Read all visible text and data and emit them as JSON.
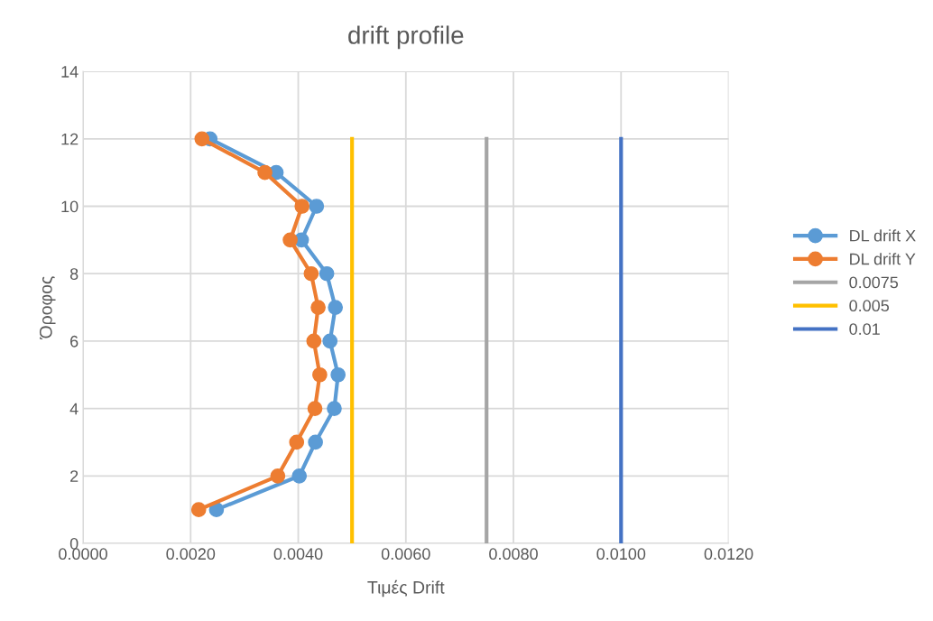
{
  "chart_data": {
    "type": "line",
    "title": "drift profile",
    "xlabel": "Τιμές Drift",
    "ylabel": "Όροφος",
    "xlim": [
      0,
      0.012
    ],
    "xticks": [
      {
        "value": 0,
        "label": "0.0000"
      },
      {
        "value": 0.002,
        "label": "0.0020"
      },
      {
        "value": 0.004,
        "label": "0.0040"
      },
      {
        "value": 0.006,
        "label": "0.0060"
      },
      {
        "value": 0.008,
        "label": "0.0080"
      },
      {
        "value": 0.01,
        "label": "0.0100"
      },
      {
        "value": 0.012,
        "label": "0.0120"
      }
    ],
    "ylim": [
      0,
      14
    ],
    "yticks": [
      0,
      2,
      4,
      6,
      8,
      10,
      12,
      14
    ],
    "grid": true,
    "legend": "right",
    "line_style": "solid",
    "series": [
      {
        "name": "DL drift X",
        "color": "#5b9bd5",
        "marker": "circle",
        "x": [
          0.00236,
          0.00359,
          0.00434,
          0.00406,
          0.00453,
          0.00469,
          0.00459,
          0.00474,
          0.00467,
          0.00432,
          0.00402,
          0.00248
        ],
        "values": [
          12,
          11,
          10,
          9,
          8,
          7,
          6,
          5,
          4,
          3,
          2,
          1
        ]
      },
      {
        "name": "DL drift Y",
        "color": "#ed7d31",
        "marker": "circle",
        "x": [
          0.00221,
          0.00338,
          0.00407,
          0.00385,
          0.00424,
          0.00437,
          0.00429,
          0.0044,
          0.00431,
          0.00397,
          0.00362,
          0.00215
        ],
        "values": [
          12,
          11,
          10,
          9,
          8,
          7,
          6,
          5,
          4,
          3,
          2,
          1
        ]
      },
      {
        "name": "0.0075",
        "color": "#a5a5a5",
        "marker": "none",
        "x": [
          0.0075,
          0.0075
        ],
        "values": [
          0,
          12
        ]
      },
      {
        "name": "0.005",
        "color": "#ffc000",
        "marker": "none",
        "x": [
          0.005,
          0.005
        ],
        "values": [
          0,
          12
        ]
      },
      {
        "name": "0.01",
        "color": "#4472c4",
        "marker": "none",
        "x": [
          0.01,
          0.01
        ],
        "values": [
          0,
          12
        ]
      }
    ]
  }
}
